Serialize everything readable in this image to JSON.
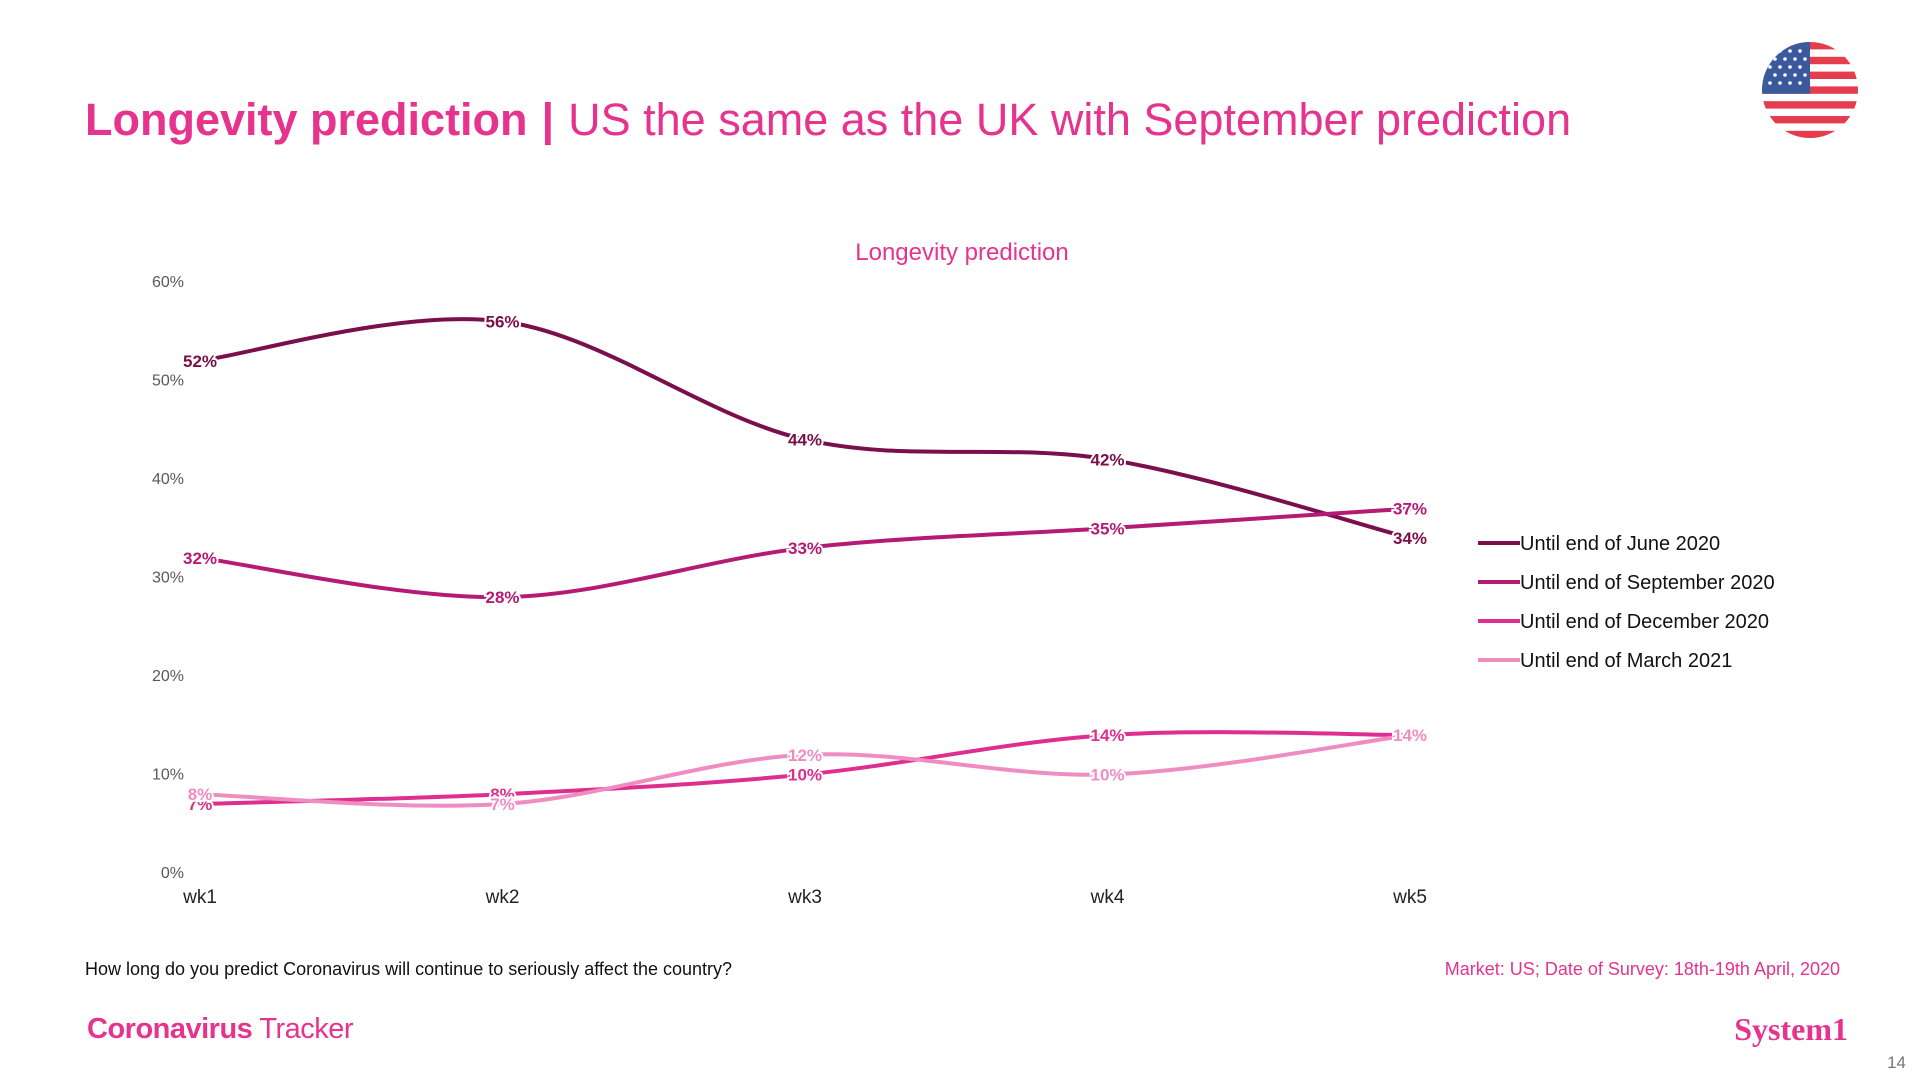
{
  "colors": {
    "accent": "#e6338d",
    "june": "#7a0f4c",
    "september": "#b51a74",
    "december": "#de2e8f",
    "march": "#ef8cc2",
    "axis_text": "#595959",
    "tick_text": "#222222"
  },
  "title": {
    "bold": "Longevity prediction",
    "separator": "|",
    "rest": "US the same as the UK with September prediction"
  },
  "flag": {
    "icon": "us-flag-icon"
  },
  "chart_data": {
    "type": "line",
    "title": "Longevity prediction",
    "categories": [
      "wk1",
      "wk2",
      "wk3",
      "wk4",
      "wk5"
    ],
    "xlabel": "",
    "ylabel": "",
    "ylim": [
      0,
      60
    ],
    "yticks": [
      0,
      10,
      20,
      30,
      40,
      50,
      60
    ],
    "ytick_labels": [
      "0%",
      "10%",
      "20%",
      "30%",
      "40%",
      "50%",
      "60%"
    ],
    "grid": false,
    "legend_position": "right",
    "series": [
      {
        "name": "Until end of June 2020",
        "values": [
          52,
          56,
          44,
          42,
          34
        ],
        "labels": [
          "52%",
          "56%",
          "44%",
          "42%",
          "34%"
        ]
      },
      {
        "name": "Until end of September 2020",
        "values": [
          32,
          28,
          33,
          35,
          37
        ],
        "labels": [
          "32%",
          "28%",
          "33%",
          "35%",
          "37%"
        ]
      },
      {
        "name": "Until end of December 2020",
        "values": [
          7,
          8,
          10,
          14,
          14
        ],
        "labels": [
          "7%",
          "8%",
          "10%",
          "14%",
          "14%"
        ]
      },
      {
        "name": "Until end of March 2021",
        "values": [
          8,
          7,
          12,
          10,
          14
        ],
        "labels": [
          "8%",
          "7%",
          "12%",
          "10%",
          "14%"
        ]
      }
    ]
  },
  "footer": {
    "question": "How long do you predict Coronavirus will continue to seriously affect the country?",
    "market": "Market: US; Date of Survey: 18th-19th April, 2020",
    "brand_bold": "Coronavirus",
    "brand_light": "Tracker",
    "system1": "System1",
    "page_number": "14"
  }
}
